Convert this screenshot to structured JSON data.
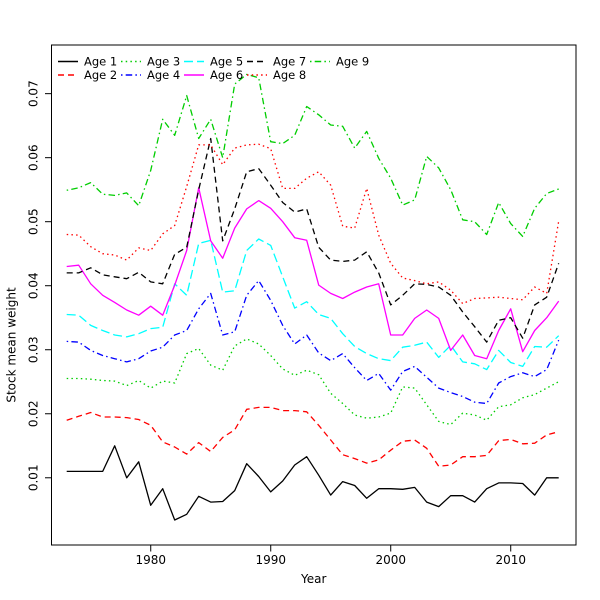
{
  "chart_data": {
    "type": "line",
    "title": "",
    "xlabel": "Year",
    "ylabel": "Stock mean weight",
    "xlim": [
      1971.73,
      2015.44
    ],
    "ylim": [
      -0.0005,
      0.0776
    ],
    "grid": false,
    "legend_position": "top-inside-two-rows",
    "x_ticks": [
      "1980",
      "1990",
      "2000",
      "2010"
    ],
    "x_tick_values": [
      1980,
      1990,
      2000,
      2010
    ],
    "y_ticks": [
      "0.01",
      "0.02",
      "0.03",
      "0.04",
      "0.05",
      "0.06",
      "0.07"
    ],
    "y_tick_values": [
      0.01,
      0.02,
      0.03,
      0.04,
      0.05,
      0.06,
      0.07
    ],
    "x": [
      1973,
      1974,
      1975,
      1976,
      1977,
      1978,
      1979,
      1980,
      1981,
      1982,
      1983,
      1984,
      1985,
      1986,
      1987,
      1988,
      1989,
      1990,
      1991,
      1992,
      1993,
      1994,
      1995,
      1996,
      1997,
      1998,
      1999,
      2000,
      2001,
      2002,
      2003,
      2004,
      2005,
      2006,
      2007,
      2008,
      2009,
      2010,
      2011,
      2012,
      2013,
      2014
    ],
    "series": [
      {
        "name": "Age 1",
        "color": "#000000",
        "style": "solid",
        "values": [
          0.011,
          0.011,
          0.011,
          0.011,
          0.015,
          0.01,
          0.0125,
          0.0057,
          0.0083,
          0.0034,
          0.0043,
          0.0071,
          0.0062,
          0.0063,
          0.008,
          0.0122,
          0.0102,
          0.0078,
          0.0095,
          0.012,
          0.0133,
          0.0104,
          0.0073,
          0.0094,
          0.0088,
          0.0068,
          0.0083,
          0.0083,
          0.0082,
          0.0085,
          0.0062,
          0.0055,
          0.0072,
          0.0072,
          0.0062,
          0.0083,
          0.0092,
          0.0092,
          0.0091,
          0.0073,
          0.01,
          0.01
        ]
      },
      {
        "name": "Age 2",
        "color": "#ff0000",
        "style": "dashed",
        "values": [
          0.019,
          0.0196,
          0.0202,
          0.0195,
          0.0195,
          0.0194,
          0.0191,
          0.0182,
          0.0156,
          0.0148,
          0.0137,
          0.0155,
          0.0141,
          0.0163,
          0.0175,
          0.0207,
          0.021,
          0.021,
          0.0205,
          0.0205,
          0.0203,
          0.0182,
          0.0159,
          0.0136,
          0.013,
          0.0123,
          0.0128,
          0.0143,
          0.0157,
          0.0159,
          0.0146,
          0.0118,
          0.012,
          0.0133,
          0.0133,
          0.0135,
          0.0158,
          0.016,
          0.0153,
          0.0154,
          0.0167,
          0.0172
        ]
      },
      {
        "name": "Age 3",
        "color": "#00cd00",
        "style": "dotted",
        "values": [
          0.0255,
          0.0255,
          0.0254,
          0.0252,
          0.0251,
          0.0244,
          0.0252,
          0.024,
          0.0251,
          0.0248,
          0.0294,
          0.0302,
          0.0276,
          0.0268,
          0.0306,
          0.0317,
          0.0309,
          0.0291,
          0.027,
          0.026,
          0.0268,
          0.0261,
          0.0232,
          0.0216,
          0.0198,
          0.0193,
          0.0195,
          0.0201,
          0.0242,
          0.024,
          0.0214,
          0.0188,
          0.0183,
          0.0201,
          0.0198,
          0.019,
          0.0211,
          0.0214,
          0.0225,
          0.023,
          0.024,
          0.025
        ]
      },
      {
        "name": "Age 4",
        "color": "#0000ff",
        "style": "dotdash",
        "values": [
          0.0313,
          0.0312,
          0.0299,
          0.0291,
          0.0286,
          0.0281,
          0.0286,
          0.0298,
          0.0304,
          0.0323,
          0.033,
          0.0364,
          0.0388,
          0.0323,
          0.0328,
          0.0385,
          0.0408,
          0.0377,
          0.0338,
          0.0309,
          0.0323,
          0.0295,
          0.0283,
          0.0294,
          0.0272,
          0.0252,
          0.0263,
          0.0237,
          0.0266,
          0.0274,
          0.0257,
          0.024,
          0.0233,
          0.0227,
          0.0218,
          0.0216,
          0.0248,
          0.0258,
          0.0264,
          0.0258,
          0.0269,
          0.0315
        ]
      },
      {
        "name": "Age 5",
        "color": "#00ffff",
        "style": "longdash",
        "values": [
          0.0355,
          0.0354,
          0.0338,
          0.033,
          0.0323,
          0.032,
          0.0325,
          0.0333,
          0.0335,
          0.0403,
          0.0385,
          0.0466,
          0.0471,
          0.039,
          0.0392,
          0.0455,
          0.0473,
          0.0463,
          0.0414,
          0.0365,
          0.0375,
          0.0355,
          0.0349,
          0.0325,
          0.0305,
          0.0294,
          0.0286,
          0.0283,
          0.0304,
          0.0307,
          0.0312,
          0.0288,
          0.0307,
          0.0281,
          0.0278,
          0.0269,
          0.0299,
          0.028,
          0.0274,
          0.0305,
          0.0304,
          0.0322
        ]
      },
      {
        "name": "Age 6",
        "color": "#ff00ff",
        "style": "solid",
        "values": [
          0.043,
          0.0432,
          0.0403,
          0.0385,
          0.0374,
          0.0362,
          0.0354,
          0.0368,
          0.0354,
          0.0401,
          0.0455,
          0.0553,
          0.047,
          0.0443,
          0.049,
          0.052,
          0.0533,
          0.0521,
          0.05,
          0.0475,
          0.0471,
          0.0401,
          0.0388,
          0.038,
          0.039,
          0.0398,
          0.0403,
          0.0323,
          0.0323,
          0.0349,
          0.0362,
          0.0349,
          0.0299,
          0.0323,
          0.0291,
          0.0286,
          0.033,
          0.0364,
          0.0297,
          0.033,
          0.035,
          0.0376
        ]
      },
      {
        "name": "Age 7",
        "color": "#000000",
        "style": "dashed",
        "values": [
          0.042,
          0.042,
          0.0428,
          0.0417,
          0.0414,
          0.0411,
          0.0421,
          0.0406,
          0.0403,
          0.0449,
          0.046,
          0.055,
          0.063,
          0.047,
          0.052,
          0.0578,
          0.0583,
          0.0557,
          0.053,
          0.0515,
          0.052,
          0.046,
          0.044,
          0.0438,
          0.044,
          0.0453,
          0.042,
          0.037,
          0.0385,
          0.0403,
          0.0402,
          0.0398,
          0.0385,
          0.0359,
          0.0336,
          0.0312,
          0.0346,
          0.035,
          0.0318,
          0.037,
          0.0382,
          0.0435
        ]
      },
      {
        "name": "Age 8",
        "color": "#ff0000",
        "style": "dotted",
        "values": [
          0.048,
          0.0479,
          0.0461,
          0.045,
          0.0448,
          0.044,
          0.0459,
          0.0455,
          0.0481,
          0.0494,
          0.0555,
          0.062,
          0.062,
          0.0589,
          0.0615,
          0.062,
          0.0621,
          0.0614,
          0.0552,
          0.0552,
          0.0568,
          0.0578,
          0.0557,
          0.0493,
          0.049,
          0.0552,
          0.0479,
          0.0435,
          0.0412,
          0.0408,
          0.0403,
          0.0406,
          0.0393,
          0.0372,
          0.038,
          0.0381,
          0.0382,
          0.038,
          0.0378,
          0.0398,
          0.0388,
          0.0501
        ]
      },
      {
        "name": "Age 9",
        "color": "#00cd00",
        "style": "dotdash",
        "values": [
          0.0549,
          0.0553,
          0.0561,
          0.0543,
          0.0541,
          0.0545,
          0.0525,
          0.058,
          0.066,
          0.0635,
          0.0697,
          0.063,
          0.066,
          0.06,
          0.0715,
          0.073,
          0.0725,
          0.0625,
          0.0622,
          0.0635,
          0.068,
          0.0667,
          0.0651,
          0.0649,
          0.0615,
          0.0641,
          0.0599,
          0.0568,
          0.0526,
          0.0534,
          0.0602,
          0.0584,
          0.055,
          0.0503,
          0.05,
          0.048,
          0.053,
          0.0497,
          0.0477,
          0.0521,
          0.0544,
          0.0551
        ]
      }
    ],
    "legend_labels": [
      "Age 1",
      "Age 2",
      "Age 3",
      "Age 4",
      "Age 5",
      "Age 6",
      "Age 7",
      "Age 8",
      "Age 9"
    ]
  }
}
